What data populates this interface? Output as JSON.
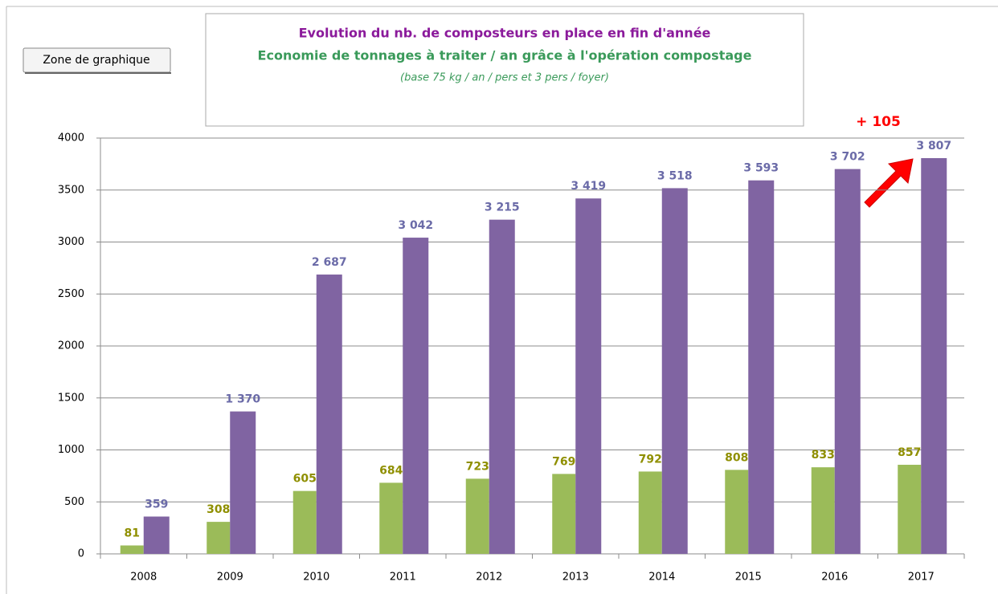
{
  "chart_data": {
    "type": "bar",
    "button": "Zone de graphique",
    "title": "Evolution du nb. de composteurs en place en fin d'année",
    "subtitle": "Economie de tonnages à traiter / an grâce à l'opération  compostage",
    "note": "(base 75 kg / an / pers et 3 pers / foyer)",
    "annotation": "+ 105",
    "categories": [
      "2008",
      "2009",
      "2010",
      "2011",
      "2012",
      "2013",
      "2014",
      "2015",
      "2016",
      "2017"
    ],
    "series": [
      {
        "color": "#9bbb59",
        "label_color": "#8f8f00",
        "values": [
          81,
          308,
          605,
          684,
          723,
          769,
          792,
          808,
          833,
          857
        ]
      },
      {
        "color": "#8064a2",
        "label_color": "#6b6ba8",
        "values": [
          359,
          1370,
          2687,
          3042,
          3215,
          3419,
          3518,
          3593,
          3702,
          3807
        ],
        "value_labels": [
          "359",
          "1 370",
          "2 687",
          "3 042",
          "3 215",
          "3 419",
          "3 518",
          "3 593",
          "3 702",
          "3 807"
        ]
      }
    ],
    "ylim": [
      0,
      4000
    ],
    "yticks": [
      0,
      500,
      1000,
      1500,
      2000,
      2500,
      3000,
      3500,
      4000
    ],
    "grid": true
  }
}
